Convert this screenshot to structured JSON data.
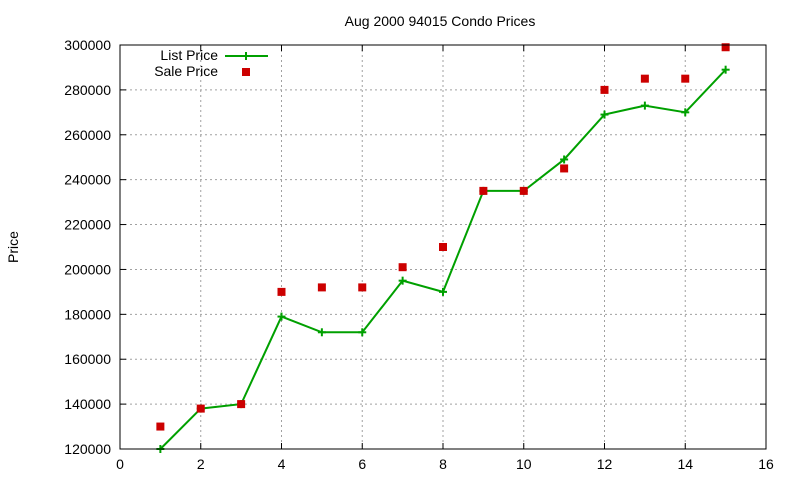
{
  "chart_data": {
    "type": "line",
    "title": "Aug 2000 94015 Condo Prices",
    "xlabel": "",
    "ylabel": "Price",
    "xlim": [
      0,
      16
    ],
    "ylim": [
      120000,
      300000
    ],
    "xticks": [
      0,
      2,
      4,
      6,
      8,
      10,
      12,
      14,
      16
    ],
    "yticks": [
      120000,
      140000,
      160000,
      180000,
      200000,
      220000,
      240000,
      260000,
      280000,
      300000
    ],
    "grid": true,
    "legend_position": "top-left",
    "x": [
      1,
      2,
      3,
      4,
      5,
      6,
      7,
      8,
      9,
      10,
      11,
      12,
      13,
      14,
      15
    ],
    "series": [
      {
        "name": "List Price",
        "style": "linespoints",
        "marker": "plus",
        "color": "#00a000",
        "values": [
          120000,
          138000,
          140000,
          179000,
          172000,
          172000,
          195000,
          190000,
          235000,
          235000,
          249000,
          269000,
          273000,
          270000,
          289000
        ]
      },
      {
        "name": "Sale Price",
        "style": "points",
        "marker": "square",
        "color": "#cc0000",
        "values": [
          130000,
          138000,
          140000,
          190000,
          192000,
          192000,
          201000,
          210000,
          235000,
          235000,
          245000,
          280000,
          285000,
          285000,
          299000
        ]
      }
    ]
  }
}
